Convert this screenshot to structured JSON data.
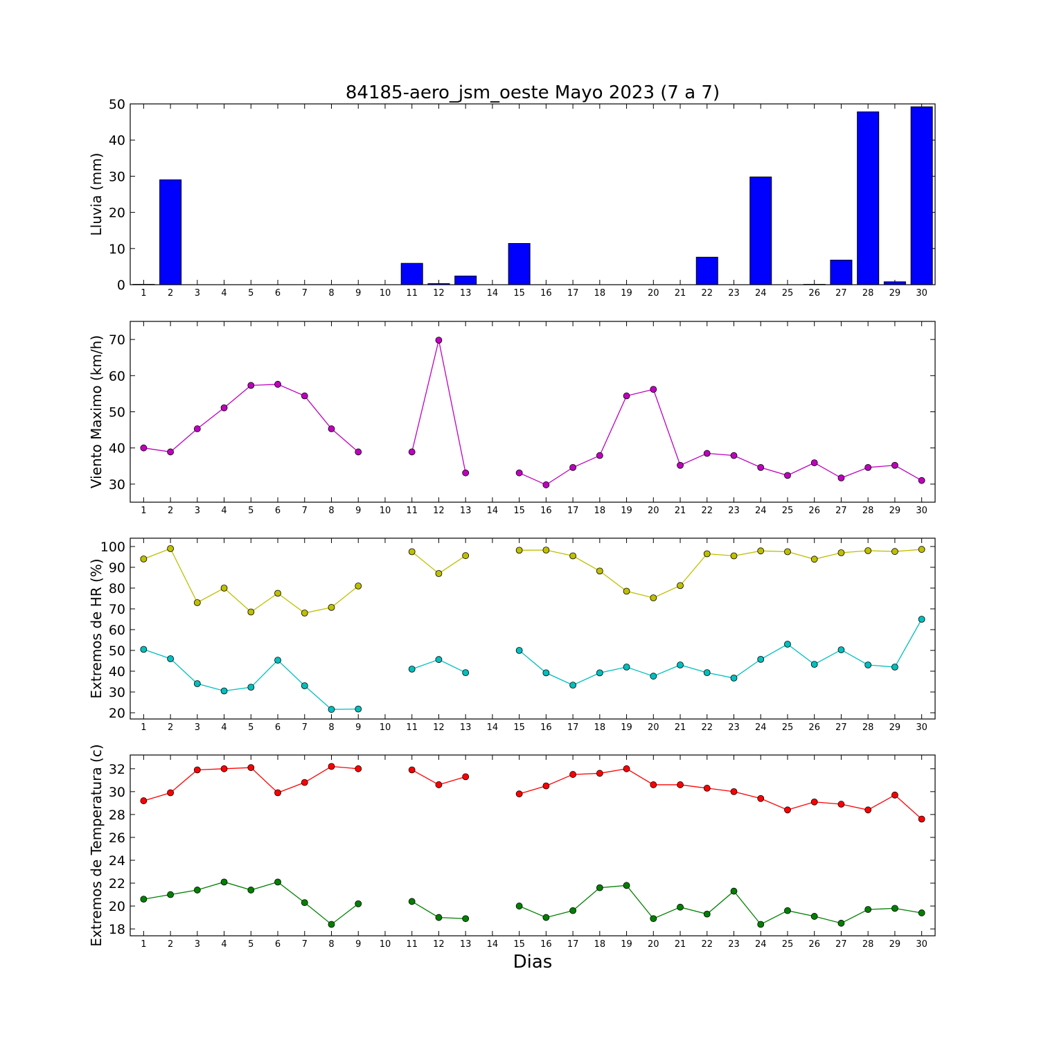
{
  "title": "84185-aero_jsm_oeste Mayo 2023  (7 a 7)",
  "xlabel": "Dias",
  "days": [
    1,
    2,
    3,
    4,
    5,
    6,
    7,
    8,
    9,
    10,
    11,
    12,
    13,
    14,
    15,
    16,
    17,
    18,
    19,
    20,
    21,
    22,
    23,
    24,
    25,
    26,
    27,
    28,
    29,
    30
  ],
  "chart_data": [
    {
      "type": "bar",
      "ylabel": "Lluvia (mm)",
      "ylim": [
        0,
        50
      ],
      "yticks": [
        0,
        10,
        20,
        30,
        40,
        50
      ],
      "xlim": [
        0.5,
        30.5
      ],
      "categories": [
        1,
        2,
        3,
        4,
        5,
        6,
        7,
        8,
        9,
        10,
        11,
        12,
        13,
        14,
        15,
        16,
        17,
        18,
        19,
        20,
        21,
        22,
        23,
        24,
        25,
        26,
        27,
        28,
        29,
        30
      ],
      "series": [
        {
          "color": "#0000ff",
          "values": [
            0.1,
            29,
            0,
            0,
            0,
            0,
            0,
            0,
            0,
            0,
            5.9,
            0.3,
            2.4,
            0,
            11.4,
            0,
            0,
            0,
            0,
            0,
            0,
            7.6,
            0,
            29.8,
            0,
            0.1,
            6.8,
            47.8,
            0.8,
            49.2
          ]
        }
      ]
    },
    {
      "type": "line",
      "ylabel": "Viento Maximo (km/h)",
      "ylim": [
        25,
        75
      ],
      "yticks": [
        30,
        40,
        50,
        60,
        70
      ],
      "xlim": [
        0.5,
        30.5
      ],
      "x": [
        1,
        2,
        3,
        4,
        5,
        6,
        7,
        8,
        9,
        10,
        11,
        12,
        13,
        14,
        15,
        16,
        17,
        18,
        19,
        20,
        21,
        22,
        23,
        24,
        25,
        26,
        27,
        28,
        29,
        30
      ],
      "series": [
        {
          "color": "#bf00bf",
          "values": [
            40,
            38.9,
            45.3,
            51.1,
            57.3,
            57.6,
            54.4,
            45.3,
            38.9,
            null,
            38.9,
            69.8,
            33.1,
            null,
            33.1,
            29.8,
            34.6,
            37.9,
            54.4,
            56.2,
            35.2,
            38.5,
            37.9,
            34.6,
            32.4,
            35.9,
            31.7,
            34.6,
            35.2,
            31
          ]
        }
      ]
    },
    {
      "type": "line",
      "ylabel": "Extremos de HR (%)",
      "ylim": [
        17,
        104
      ],
      "yticks": [
        20,
        30,
        40,
        50,
        60,
        70,
        80,
        90,
        100
      ],
      "xlim": [
        0.5,
        30.5
      ],
      "x": [
        1,
        2,
        3,
        4,
        5,
        6,
        7,
        8,
        9,
        10,
        11,
        12,
        13,
        14,
        15,
        16,
        17,
        18,
        19,
        20,
        21,
        22,
        23,
        24,
        25,
        26,
        27,
        28,
        29,
        30
      ],
      "series": [
        {
          "color": "#bfbf00",
          "values": [
            94,
            99,
            73,
            80,
            68.5,
            77.5,
            68,
            70.7,
            81,
            null,
            97.5,
            87,
            95.6,
            null,
            98.2,
            98.3,
            95.5,
            88.2,
            78.5,
            75.3,
            81.2,
            96.5,
            95.5,
            97.9,
            97.5,
            93.9,
            97,
            98,
            97.6,
            98.6
          ]
        },
        {
          "color": "#00bfbf",
          "values": [
            50.5,
            46,
            34,
            30.5,
            32.3,
            45.3,
            33,
            21.6,
            21.8,
            null,
            41,
            45.6,
            39.3,
            null,
            50,
            39.2,
            33.3,
            39.2,
            42,
            37.6,
            43,
            39.3,
            36.7,
            45.7,
            53,
            43.3,
            50.3,
            43,
            42,
            65
          ]
        }
      ]
    },
    {
      "type": "line",
      "ylabel": "Extremos de Temperatura (c)",
      "ylim": [
        17.4,
        33.2
      ],
      "yticks": [
        18,
        20,
        22,
        24,
        26,
        28,
        30,
        32
      ],
      "xlim": [
        0.5,
        30.5
      ],
      "x": [
        1,
        2,
        3,
        4,
        5,
        6,
        7,
        8,
        9,
        10,
        11,
        12,
        13,
        14,
        15,
        16,
        17,
        18,
        19,
        20,
        21,
        22,
        23,
        24,
        25,
        26,
        27,
        28,
        29,
        30
      ],
      "series": [
        {
          "color": "#ff0000",
          "values": [
            29.2,
            29.9,
            31.9,
            32,
            32.1,
            29.9,
            30.8,
            32.2,
            32,
            null,
            31.9,
            30.6,
            31.3,
            null,
            29.8,
            30.5,
            31.5,
            31.6,
            32,
            30.6,
            30.6,
            30.3,
            30,
            29.4,
            28.4,
            29.1,
            28.9,
            28.4,
            29.7,
            27.6
          ]
        },
        {
          "color": "#008000",
          "values": [
            20.6,
            21,
            21.4,
            22.1,
            21.4,
            22.1,
            20.3,
            18.4,
            20.2,
            null,
            20.4,
            19,
            18.9,
            null,
            20,
            19,
            19.6,
            21.6,
            21.8,
            18.9,
            19.9,
            19.3,
            21.3,
            18.4,
            19.6,
            19.1,
            18.5,
            19.7,
            19.8,
            19.4
          ]
        }
      ]
    }
  ]
}
